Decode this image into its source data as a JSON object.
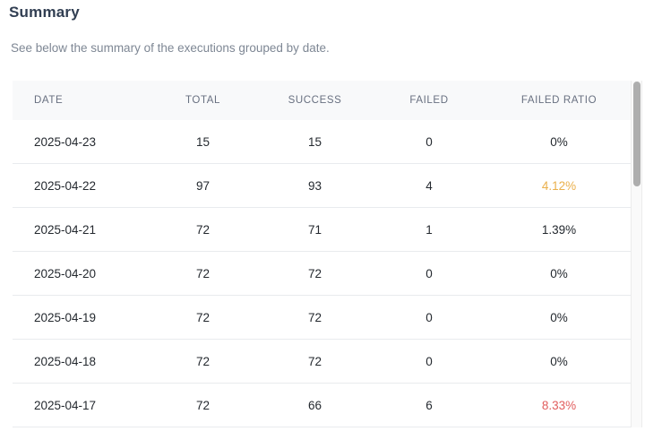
{
  "header": {
    "title": "Summary",
    "subtitle": "See below the summary of the executions grouped by date."
  },
  "colors": {
    "title_text": "#313e52",
    "subtitle_text": "#7e8794",
    "table_header_bg": "#f8f9fa",
    "table_header_text": "#687080",
    "row_text": "#24292f",
    "row_divider": "#e9ebee",
    "ratio_warning": "#eab04c",
    "ratio_danger": "#e15d5d",
    "scrollbar_thumb": "#aeaeae"
  },
  "table": {
    "columns": [
      "DATE",
      "TOTAL",
      "SUCCESS",
      "FAILED",
      "FAILED RATIO"
    ],
    "rows": [
      {
        "date": "2025-04-23",
        "total": "15",
        "success": "15",
        "failed": "0",
        "failed_ratio": "0%",
        "ratio_status": "normal"
      },
      {
        "date": "2025-04-22",
        "total": "97",
        "success": "93",
        "failed": "4",
        "failed_ratio": "4.12%",
        "ratio_status": "warning"
      },
      {
        "date": "2025-04-21",
        "total": "72",
        "success": "71",
        "failed": "1",
        "failed_ratio": "1.39%",
        "ratio_status": "normal"
      },
      {
        "date": "2025-04-20",
        "total": "72",
        "success": "72",
        "failed": "0",
        "failed_ratio": "0%",
        "ratio_status": "normal"
      },
      {
        "date": "2025-04-19",
        "total": "72",
        "success": "72",
        "failed": "0",
        "failed_ratio": "0%",
        "ratio_status": "normal"
      },
      {
        "date": "2025-04-18",
        "total": "72",
        "success": "72",
        "failed": "0",
        "failed_ratio": "0%",
        "ratio_status": "normal"
      },
      {
        "date": "2025-04-17",
        "total": "72",
        "success": "66",
        "failed": "6",
        "failed_ratio": "8.33%",
        "ratio_status": "danger"
      }
    ]
  }
}
